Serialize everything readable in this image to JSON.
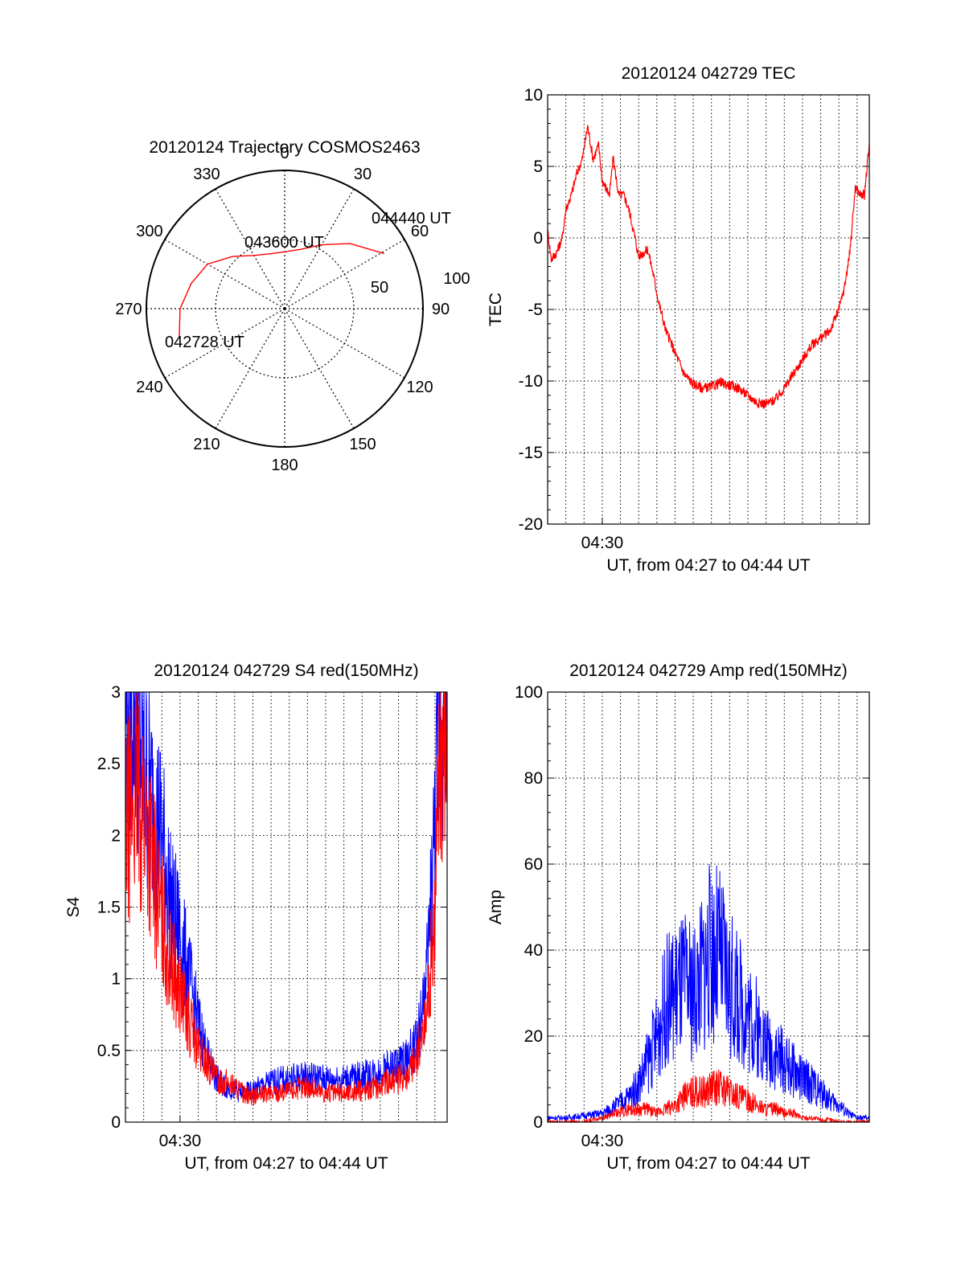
{
  "chart_data": [
    {
      "type": "polar",
      "title": "20120124 Trajectory COSMOS2463",
      "azimuth_labels": [
        "0",
        "30",
        "60",
        "90",
        "120",
        "150",
        "180",
        "210",
        "240",
        "270",
        "300",
        "330"
      ],
      "elevation_labels": [
        "50",
        "100"
      ],
      "trajectory": {
        "points": [
          {
            "az": 255,
            "el": 19
          },
          {
            "az": 270,
            "el": 22
          },
          {
            "az": 285,
            "el": 27
          },
          {
            "az": 300,
            "el": 32
          },
          {
            "az": 315,
            "el": 42
          },
          {
            "az": 330,
            "el": 50
          },
          {
            "az": 345,
            "el": 53
          },
          {
            "az": 0,
            "el": 53
          },
          {
            "az": 15,
            "el": 50
          },
          {
            "az": 30,
            "el": 42
          },
          {
            "az": 45,
            "el": 30
          },
          {
            "az": 61,
            "el": 16
          }
        ],
        "labels": [
          {
            "text": "042728 UT"
          },
          {
            "text": "043600 UT"
          },
          {
            "text": "044440 UT"
          }
        ],
        "color": "#ff0000"
      }
    },
    {
      "type": "line",
      "title": "20120124 042729 TEC",
      "ylabel": "TEC",
      "xlabel": "UT, from 04:27 to 04:44 UT",
      "xtick_label": "04:30",
      "xlim": [
        27,
        44.67
      ],
      "ylim": [
        -20,
        10
      ],
      "yticks": [
        "10",
        "5",
        "0",
        "-5",
        "-10",
        "-15",
        "-20"
      ],
      "grid": true,
      "series": [
        {
          "color": "#ff0000",
          "x": [
            27.0,
            27.2,
            27.5,
            27.8,
            28.0,
            28.3,
            28.6,
            28.9,
            29.2,
            29.5,
            29.8,
            30.0,
            30.2,
            30.4,
            30.6,
            30.9,
            31.2,
            31.5,
            31.8,
            32.0,
            32.3,
            32.5,
            32.8,
            33.1,
            33.5,
            34.0,
            34.5,
            35.0,
            35.5,
            36.0,
            36.5,
            37.0,
            37.5,
            38.0,
            38.5,
            39.0,
            39.5,
            40.0,
            40.5,
            41.0,
            41.5,
            42.0,
            42.5,
            43.0,
            43.3,
            43.6,
            43.9,
            44.2,
            44.4,
            44.67
          ],
          "y": [
            0.5,
            -1.5,
            -1.0,
            0.0,
            2.0,
            3.0,
            4.5,
            5.5,
            7.8,
            5.5,
            6.5,
            4.0,
            3.5,
            3.0,
            5.6,
            3.0,
            3.0,
            1.8,
            0.0,
            -1.3,
            -1.0,
            -0.8,
            -2.5,
            -4.5,
            -6.5,
            -8.0,
            -9.5,
            -10.2,
            -10.5,
            -10.4,
            -10.1,
            -10.3,
            -10.5,
            -11.0,
            -11.5,
            -11.6,
            -11.3,
            -10.5,
            -9.5,
            -8.5,
            -7.5,
            -7.0,
            -6.5,
            -5.0,
            -3.5,
            -1.0,
            3.5,
            3.0,
            3.0,
            6.5
          ]
        }
      ]
    },
    {
      "type": "line",
      "title": "20120124 042729 S4 red(150MHz)",
      "ylabel": "S4",
      "xlabel": "UT, from 04:27 to 04:44 UT",
      "xtick_label": "04:30",
      "xlim": [
        27,
        44.67
      ],
      "ylim": [
        0,
        3
      ],
      "yticks": [
        "3",
        "2.5",
        "2",
        "1.5",
        "1",
        "0.5",
        "0"
      ],
      "grid": true,
      "series": [
        {
          "color": "#0000ff",
          "x": [
            27.0,
            27.5,
            28.0,
            28.5,
            29.0,
            29.5,
            30.0,
            30.5,
            31.0,
            31.5,
            32.0,
            32.5,
            33.0,
            33.5,
            34.0,
            35.0,
            36.0,
            37.0,
            38.0,
            39.0,
            40.0,
            41.0,
            41.5,
            42.0,
            42.5,
            43.0,
            43.5,
            44.0,
            44.3,
            44.67
          ],
          "y": [
            3.0,
            3.0,
            2.5,
            2.2,
            2.0,
            1.5,
            1.3,
            1.0,
            0.7,
            0.45,
            0.3,
            0.25,
            0.22,
            0.2,
            0.22,
            0.28,
            0.3,
            0.32,
            0.3,
            0.3,
            0.32,
            0.35,
            0.38,
            0.4,
            0.45,
            0.55,
            0.9,
            2.0,
            3.0,
            3.0
          ]
        },
        {
          "color": "#ff0000",
          "x": [
            27.0,
            27.5,
            28.0,
            28.5,
            29.0,
            29.5,
            30.0,
            30.5,
            31.0,
            31.5,
            32.0,
            32.5,
            33.0,
            33.5,
            34.0,
            35.0,
            36.0,
            37.0,
            38.0,
            39.0,
            40.0,
            41.0,
            41.5,
            42.0,
            42.5,
            43.0,
            43.5,
            44.0,
            44.3,
            44.67
          ],
          "y": [
            2.0,
            2.3,
            2.2,
            1.8,
            1.4,
            1.1,
            0.9,
            0.7,
            0.5,
            0.4,
            0.3,
            0.28,
            0.25,
            0.2,
            0.18,
            0.2,
            0.22,
            0.25,
            0.2,
            0.2,
            0.22,
            0.25,
            0.3,
            0.3,
            0.35,
            0.45,
            0.7,
            1.5,
            2.7,
            2.9
          ]
        }
      ]
    },
    {
      "type": "line",
      "title": "20120124 042729 Amp red(150MHz)",
      "ylabel": "Amp",
      "xlabel": "UT, from 04:27 to 04:44 UT",
      "xtick_label": "04:30",
      "xlim": [
        27,
        44.67
      ],
      "ylim": [
        0,
        100
      ],
      "yticks": [
        "100",
        "80",
        "60",
        "40",
        "20",
        "0"
      ],
      "grid": true,
      "series": [
        {
          "color": "#0000ff",
          "x": [
            27.0,
            28.0,
            29.0,
            30.0,
            30.8,
            31.5,
            32.0,
            32.5,
            33.0,
            33.5,
            34.0,
            34.5,
            35.0,
            35.5,
            36.0,
            36.5,
            37.0,
            37.5,
            38.0,
            38.5,
            39.0,
            39.5,
            40.0,
            40.5,
            41.0,
            41.5,
            42.0,
            42.5,
            43.0,
            43.5,
            44.0,
            44.67
          ],
          "y": [
            1,
            1,
            1.5,
            2,
            4,
            6,
            9,
            14,
            20,
            28,
            30,
            32,
            30,
            35,
            40,
            38,
            32,
            28,
            25,
            22,
            18,
            16,
            14,
            12,
            10,
            9,
            7,
            5,
            4,
            2,
            1,
            1
          ]
        },
        {
          "color": "#ff0000",
          "x": [
            27.0,
            28.0,
            29.0,
            30.0,
            30.8,
            31.5,
            32.0,
            32.5,
            33.0,
            33.5,
            34.0,
            34.5,
            35.0,
            35.5,
            36.0,
            36.5,
            37.0,
            37.5,
            38.0,
            38.5,
            39.0,
            39.5,
            40.0,
            40.5,
            41.0,
            41.5,
            42.0,
            42.5,
            43.0,
            43.5,
            44.0,
            44.67
          ],
          "y": [
            0,
            0,
            0,
            1,
            2,
            3,
            3,
            3,
            2,
            3,
            4,
            6,
            7,
            7,
            8,
            8,
            7,
            6,
            5,
            4,
            3,
            3,
            2,
            2,
            1,
            1,
            0.5,
            0.5,
            0,
            0,
            0,
            0
          ]
        }
      ]
    }
  ]
}
